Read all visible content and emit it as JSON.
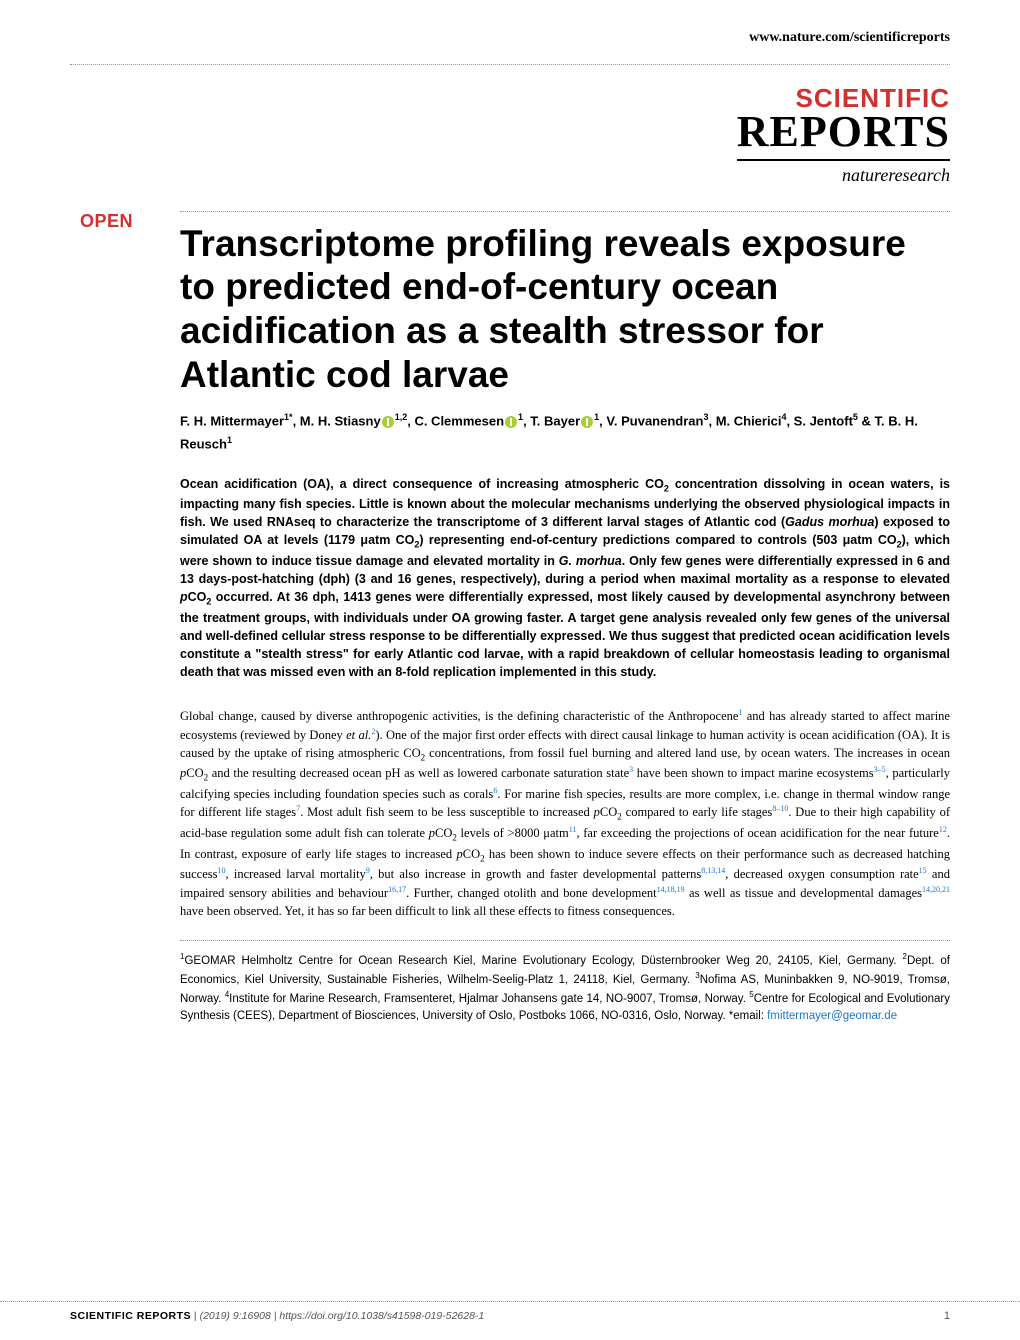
{
  "header": {
    "url": "www.nature.com/scientificreports",
    "logo_scientific": "SCIENTIFIC",
    "logo_reports": "REPORTS",
    "logo_nature": "natureresearch",
    "open_badge": "OPEN"
  },
  "article": {
    "title": "Transcriptome profiling reveals exposure to predicted end-of-century ocean acidification as a stealth stressor for Atlantic cod larvae",
    "authors_html": "F. H. Mittermayer<sup>1*</sup>, M. H. Stiasny<span class='orcid'></span><sup>1,2</sup>, C. Clemmesen<span class='orcid'></span><sup>1</sup>, T. Bayer<span class='orcid'></span><sup>1</sup>, V. Puvanendran<sup>3</sup>, M. Chierici<sup>4</sup>, S. Jentoft<sup>5</sup> & T. B. H. Reusch<sup>1</sup>",
    "abstract_html": "Ocean acidification (OA), a direct consequence of increasing atmospheric CO<sub>2</sub> concentration dissolving in ocean waters, is impacting many fish species. Little is known about the molecular mechanisms underlying the observed physiological impacts in fish. We used RNAseq to characterize the transcriptome of 3 different larval stages of Atlantic cod (<i>Gadus morhua</i>) exposed to simulated OA at levels (1179 μatm CO<sub>2</sub>) representing end-of-century predictions compared to controls (503 μatm CO<sub>2</sub>), which were shown to induce tissue damage and elevated mortality in <i>G. morhua</i>. Only few genes were differentially expressed in 6 and 13 days-post-hatching (dph) (3 and 16 genes, respectively), during a period when maximal mortality as a response to elevated <i>p</i>CO<sub>2</sub> occurred. At 36 dph, 1413 genes were differentially expressed, most likely caused by developmental asynchrony between the treatment groups, with individuals under OA growing faster. A target gene analysis revealed only few genes of the universal and well-defined cellular stress response to be differentially expressed. We thus suggest that predicted ocean acidification levels constitute a \"stealth stress\" for early Atlantic cod larvae, with a rapid breakdown of cellular homeostasis leading to organismal death that was missed even with an 8-fold replication implemented in this study.",
    "body_html": "Global change, caused by diverse anthropogenic activities, is the defining characteristic of the Anthropocene<sup>1</sup> and has already started to affect marine ecosystems (reviewed by Doney <i>et al.</i><sup>2</sup>). One of the major first order effects with direct causal linkage to human activity is ocean acidification (OA). It is caused by the uptake of rising atmospheric CO<sub>2</sub> concentrations, from fossil fuel burning and altered land use, by ocean waters. The increases in ocean <i>p</i>CO<sub>2</sub> and the resulting decreased ocean pH as well as lowered carbonate saturation state<sup>3</sup> have been shown to impact marine ecosystems<sup>3–5</sup>, particularly calcifying species including foundation species such as corals<sup>6</sup>. For marine fish species, results are more complex, i.e. change in thermal window range for different life stages<sup>7</sup>. Most adult fish seem to be less susceptible to increased <i>p</i>CO<sub>2</sub> compared to early life stages<sup>8–10</sup>. Due to their high capability of acid-base regulation some adult fish can tolerate <i>p</i>CO<sub>2</sub> levels of >8000 μatm<sup>11</sup>, far exceeding the projections of ocean acidification for the near future<sup>12</sup>. In contrast, exposure of early life stages to increased <i>p</i>CO<sub>2</sub> has been shown to induce severe effects on their performance such as decreased hatching success<sup>10</sup>, increased larval mortality<sup>9</sup>, but also increase in growth and faster developmental patterns<sup>8,13,14</sup>, decreased oxygen consumption rate<sup>15</sup> and impaired sensory abilities and behaviour<sup>16,17</sup>. Further, changed otolith and bone development<sup>14,18,19</sup> as well as tissue and developmental damages<sup>14,20,21</sup> have been observed. Yet, it has so far been difficult to link all these effects to fitness consequences.",
    "affiliations_html": "<sup>1</sup>GEOMAR Helmholtz Centre for Ocean Research Kiel, Marine Evolutionary Ecology, Düsternbrooker Weg 20, 24105, Kiel, Germany. <sup>2</sup>Dept. of Economics, Kiel University, Sustainable Fisheries, Wilhelm-Seelig-Platz 1, 24118, Kiel, Germany. <sup>3</sup>Nofima AS, Muninbakken 9, NO-9019, Tromsø, Norway. <sup>4</sup>Institute for Marine Research, Framsenteret, Hjalmar Johansens gate 14, NO-9007, Tromsø, Norway. <sup>5</sup>Centre for Ecological and Evolutionary Synthesis (CEES), Department of Biosciences, University of Oslo, Postboks 1066, NO-0316, Oslo, Norway. *email: <a>fmittermayer@geomar.de</a>"
  },
  "footer": {
    "journal": "SCIENTIFIC REPORTS",
    "sep": " | ",
    "citation": "(2019) 9:16908 | https://doi.org/10.1038/s41598-019-52628-1",
    "page": "1"
  },
  "colors": {
    "accent_red": "#d32f2f",
    "link_blue": "#1976d2",
    "orcid_green": "#a6ce39",
    "text": "#000000",
    "bg": "#ffffff",
    "dotted": "#999999"
  },
  "typography": {
    "title_fontsize": 37,
    "authors_fontsize": 13,
    "abstract_fontsize": 12.5,
    "body_fontsize": 12.5,
    "affil_fontsize": 11.5,
    "footer_fontsize": 10.5
  }
}
